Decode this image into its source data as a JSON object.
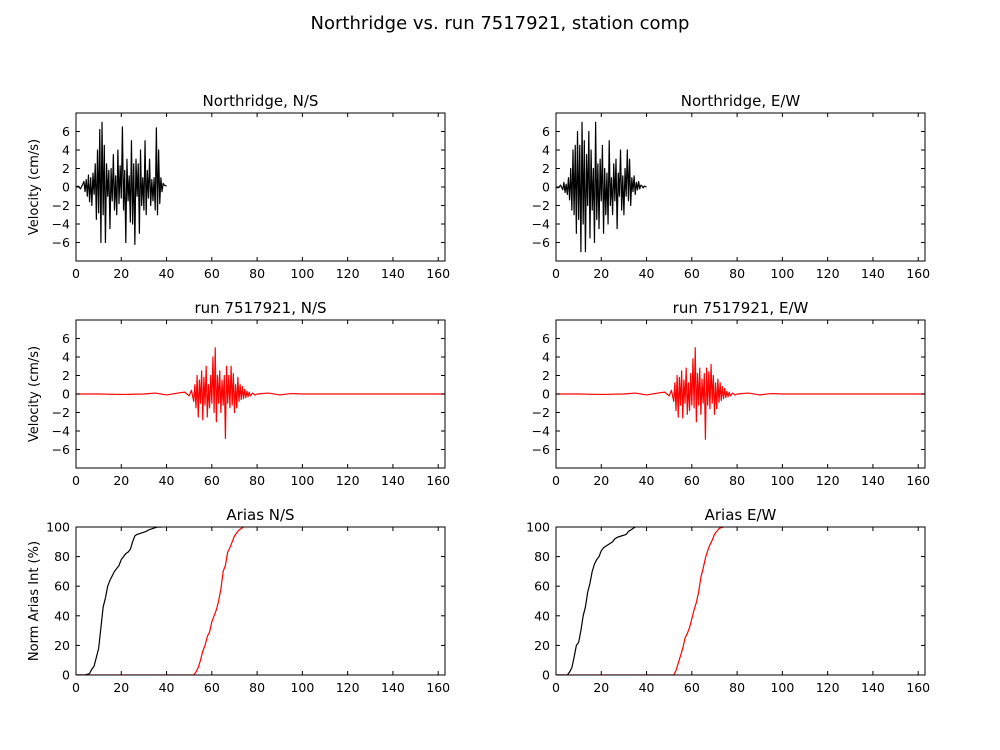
{
  "figure": {
    "title": "Northridge vs. run 7517921, station comp"
  },
  "colors": {
    "observed": "#000000",
    "simulated": "#ff0000"
  },
  "chart_data": [
    {
      "type": "line",
      "title": "Northridge, N/S",
      "xlabel": "",
      "ylabel": "Velocity (cm/s)",
      "xlim": [
        0,
        163
      ],
      "ylim": [
        -8,
        8
      ],
      "xticks": [
        0,
        20,
        40,
        60,
        80,
        100,
        120,
        140,
        160
      ],
      "yticks": [
        -6,
        -4,
        -2,
        0,
        2,
        4,
        6
      ],
      "series": [
        {
          "color": "#000000",
          "x": [
            0,
            1,
            2,
            3,
            3.5,
            4,
            4.5,
            5,
            5.5,
            6,
            6.5,
            7,
            7.5,
            8,
            8.5,
            9,
            9.5,
            10,
            10.5,
            11,
            11.5,
            12,
            12.5,
            13,
            13.5,
            14,
            14.5,
            15,
            15.5,
            16,
            16.5,
            17,
            17.5,
            18,
            18.5,
            19,
            19.5,
            20,
            20.5,
            21,
            21.5,
            22,
            22.5,
            23,
            23.5,
            24,
            24.5,
            25,
            25.5,
            26,
            26.5,
            27,
            27.5,
            28,
            28.5,
            29,
            29.5,
            30,
            30.5,
            31,
            31.5,
            32,
            32.5,
            33,
            33.5,
            34,
            34.5,
            35,
            35.5,
            36,
            36.5,
            37,
            37.5,
            38,
            38.5,
            39,
            40
          ],
          "y": [
            0,
            0.1,
            -0.2,
            0.3,
            0.6,
            -0.5,
            0.8,
            -1.0,
            1.3,
            -1.6,
            1.0,
            -2.0,
            1.5,
            -0.8,
            2.5,
            -3.5,
            4.0,
            -2.8,
            6.2,
            -6.0,
            7.0,
            -3.0,
            4.5,
            -6.0,
            2.5,
            -1.0,
            1.8,
            -4.5,
            2.0,
            -1.5,
            3.5,
            -2.5,
            1.2,
            -3.0,
            4.0,
            -1.8,
            2.3,
            -1.2,
            6.5,
            -2.5,
            1.8,
            -6.0,
            3.0,
            -1.5,
            1.2,
            -3.8,
            5.0,
            -4.0,
            2.5,
            -6.2,
            3.0,
            -1.0,
            2.5,
            -5.0,
            4.0,
            -2.0,
            1.0,
            -2.5,
            5.0,
            -3.0,
            1.8,
            -1.2,
            3.0,
            -2.0,
            0.8,
            -1.5,
            1.0,
            -2.5,
            6.4,
            -3.0,
            4.0,
            -1.8,
            1.0,
            -0.5,
            0.4,
            0.2,
            0.1
          ]
        }
      ]
    },
    {
      "type": "line",
      "title": "Northridge, E/W",
      "xlabel": "",
      "ylabel": "",
      "xlim": [
        0,
        163
      ],
      "ylim": [
        -8,
        8
      ],
      "xticks": [
        0,
        20,
        40,
        60,
        80,
        100,
        120,
        140,
        160
      ],
      "yticks": [
        -6,
        -4,
        -2,
        0,
        2,
        4,
        6
      ],
      "series": [
        {
          "color": "#000000",
          "x": [
            0,
            1,
            2,
            3,
            3.5,
            4,
            4.5,
            5,
            5.5,
            6,
            6.5,
            7,
            7.5,
            8,
            8.5,
            9,
            9.5,
            10,
            10.5,
            11,
            11.5,
            12,
            12.5,
            13,
            13.5,
            14,
            14.5,
            15,
            15.5,
            16,
            16.5,
            17,
            17.5,
            18,
            18.5,
            19,
            19.5,
            20,
            20.5,
            21,
            21.5,
            22,
            22.5,
            23,
            23.5,
            24,
            24.5,
            25,
            25.5,
            26,
            26.5,
            27,
            27.5,
            28,
            28.5,
            29,
            29.5,
            30,
            30.5,
            31,
            31.5,
            32,
            32.5,
            33,
            33.5,
            34,
            34.5,
            35,
            35.5,
            36,
            36.5,
            37,
            37.5,
            38,
            38.5,
            39,
            40
          ],
          "y": [
            0,
            -0.1,
            0.2,
            -0.3,
            0.5,
            -0.6,
            0.3,
            -0.8,
            1.0,
            -1.4,
            2.0,
            -2.5,
            4.0,
            -3.0,
            4.5,
            -5.0,
            6.0,
            -3.5,
            4.5,
            -7.0,
            7.0,
            -4.0,
            5.0,
            -7.0,
            3.5,
            -2.0,
            6.0,
            -5.5,
            4.0,
            -2.5,
            2.0,
            -6.0,
            7.0,
            -3.5,
            2.5,
            -4.5,
            3.0,
            -1.5,
            4.5,
            -5.0,
            2.0,
            -3.0,
            1.5,
            -4.0,
            5.0,
            -2.0,
            1.0,
            -3.0,
            2.5,
            -1.5,
            3.0,
            -4.5,
            1.5,
            -1.0,
            4.0,
            -2.5,
            1.2,
            -3.0,
            2.0,
            -1.0,
            4.0,
            -1.5,
            3.0,
            -2.0,
            1.0,
            -0.5,
            1.2,
            -0.8,
            0.5,
            -0.3,
            0.6,
            -0.2,
            0.2,
            0.1,
            -0.1,
            0.1,
            0
          ]
        }
      ]
    },
    {
      "type": "line",
      "title": "run 7517921, N/S",
      "xlabel": "",
      "ylabel": "Velocity (cm/s)",
      "xlim": [
        0,
        163
      ],
      "ylim": [
        -8,
        8
      ],
      "xticks": [
        0,
        20,
        40,
        60,
        80,
        100,
        120,
        140,
        160
      ],
      "yticks": [
        -6,
        -4,
        -2,
        0,
        2,
        4,
        6
      ],
      "series": [
        {
          "color": "#ff0000",
          "x": [
            0,
            10,
            20,
            30,
            35,
            40,
            45,
            48,
            50,
            51,
            52,
            52.5,
            53,
            53.5,
            54,
            54.5,
            55,
            55.5,
            56,
            56.5,
            57,
            57.5,
            58,
            58.5,
            59,
            59.5,
            60,
            60.5,
            61,
            61.5,
            62,
            62.5,
            63,
            63.5,
            64,
            64.5,
            65,
            65.5,
            66,
            66.5,
            67,
            67.5,
            68,
            68.5,
            69,
            69.5,
            70,
            70.5,
            71,
            71.5,
            72,
            72.5,
            73,
            73.5,
            74,
            74.5,
            75,
            75.5,
            76,
            76.5,
            77,
            78,
            79,
            80,
            85,
            90,
            95,
            100,
            110,
            120,
            130,
            140,
            150,
            163
          ],
          "y": [
            0,
            0,
            -0.05,
            0,
            0.1,
            -0.1,
            0.1,
            0.2,
            -0.2,
            0.4,
            -0.8,
            1.0,
            -1.5,
            2.0,
            -2.5,
            1.5,
            -1.0,
            2.5,
            -2.8,
            1.8,
            -1.2,
            3.0,
            -2.5,
            1.0,
            -1.5,
            2.0,
            -1.0,
            4.0,
            -2.0,
            5.0,
            -3.0,
            2.0,
            -1.0,
            2.5,
            -2.0,
            1.5,
            -1.2,
            2.0,
            -4.8,
            3.0,
            -1.0,
            2.0,
            -1.5,
            3.0,
            -1.2,
            2.2,
            -2.0,
            1.0,
            -1.5,
            1.8,
            -0.8,
            1.0,
            -0.6,
            0.8,
            -0.5,
            0.5,
            -0.4,
            0.3,
            -0.3,
            0.2,
            -0.2,
            0.1,
            -0.1,
            0,
            0.1,
            -0.1,
            0.05,
            0,
            0,
            0,
            0,
            0,
            0,
            0
          ]
        }
      ]
    },
    {
      "type": "line",
      "title": "run 7517921, E/W",
      "xlabel": "",
      "ylabel": "",
      "xlim": [
        0,
        163
      ],
      "ylim": [
        -8,
        8
      ],
      "xticks": [
        0,
        20,
        40,
        60,
        80,
        100,
        120,
        140,
        160
      ],
      "yticks": [
        -6,
        -4,
        -2,
        0,
        2,
        4,
        6
      ],
      "series": [
        {
          "color": "#ff0000",
          "x": [
            0,
            10,
            20,
            30,
            35,
            40,
            45,
            48,
            50,
            51,
            52,
            52.5,
            53,
            53.5,
            54,
            54.5,
            55,
            55.5,
            56,
            56.5,
            57,
            57.5,
            58,
            58.5,
            59,
            59.5,
            60,
            60.5,
            61,
            61.5,
            62,
            62.5,
            63,
            63.5,
            64,
            64.5,
            65,
            65.5,
            66,
            66.5,
            67,
            67.5,
            68,
            68.5,
            69,
            69.5,
            70,
            70.5,
            71,
            71.5,
            72,
            72.5,
            73,
            73.5,
            74,
            74.5,
            75,
            75.5,
            76,
            76.5,
            77,
            78,
            79,
            80,
            85,
            90,
            95,
            100,
            110,
            120,
            130,
            140,
            150,
            163
          ],
          "y": [
            0,
            0,
            -0.05,
            0,
            0.1,
            -0.1,
            0.1,
            0.2,
            -0.2,
            0.4,
            -0.8,
            1.2,
            -1.8,
            2.0,
            -2.5,
            1.8,
            -1.2,
            2.5,
            -2.6,
            1.5,
            -1.0,
            2.8,
            -2.2,
            1.2,
            -1.8,
            2.2,
            -1.2,
            3.8,
            -1.5,
            5.0,
            -3.0,
            2.2,
            -1.2,
            2.8,
            -2.2,
            1.6,
            -1.0,
            2.2,
            -4.9,
            2.8,
            -1.2,
            2.4,
            -1.6,
            3.2,
            -1.0,
            2.0,
            -2.2,
            1.2,
            -1.6,
            1.6,
            -0.9,
            1.2,
            -0.7,
            0.8,
            -0.5,
            0.6,
            -0.4,
            0.3,
            -0.3,
            0.2,
            -0.2,
            0.1,
            -0.1,
            0,
            0.1,
            -0.1,
            0.05,
            0,
            0,
            0,
            0,
            0,
            0,
            0
          ]
        }
      ]
    },
    {
      "type": "line",
      "title": "Arias N/S",
      "xlabel": "",
      "ylabel": "Norm Arias Int (%)",
      "xlim": [
        0,
        163
      ],
      "ylim": [
        0,
        100
      ],
      "xticks": [
        0,
        20,
        40,
        60,
        80,
        100,
        120,
        140,
        160
      ],
      "yticks": [
        0,
        20,
        40,
        60,
        80,
        100
      ],
      "series": [
        {
          "color": "#000000",
          "x": [
            0,
            4,
            6,
            7,
            8,
            9,
            10,
            11,
            12,
            13,
            14,
            15,
            16,
            17,
            18,
            19,
            20,
            21,
            22,
            23,
            24,
            25,
            26,
            27,
            28,
            29,
            30,
            31,
            32,
            33,
            34,
            35,
            36,
            37,
            38
          ],
          "y": [
            0,
            0,
            1,
            4,
            6,
            12,
            18,
            32,
            46,
            52,
            60,
            64,
            67,
            70,
            72,
            74,
            78,
            80,
            82,
            83,
            85,
            90,
            94,
            95,
            95.5,
            96,
            96.5,
            97,
            98,
            98.5,
            99,
            99.5,
            100,
            100,
            100
          ]
        },
        {
          "color": "#ff0000",
          "x": [
            0,
            40,
            50,
            52,
            53,
            54,
            55,
            56,
            57,
            58,
            59,
            60,
            61,
            62,
            63,
            64,
            65,
            66,
            67,
            68,
            69,
            70,
            71,
            72,
            73,
            74
          ],
          "y": [
            0,
            0,
            0,
            0,
            2,
            5,
            10,
            16,
            20,
            26,
            29,
            36,
            40,
            44,
            50,
            58,
            70,
            74,
            83,
            86,
            90,
            94,
            96,
            98,
            99,
            100
          ]
        }
      ]
    },
    {
      "type": "line",
      "title": "Arias E/W",
      "xlabel": "",
      "ylabel": "",
      "xlim": [
        0,
        163
      ],
      "ylim": [
        0,
        100
      ],
      "xticks": [
        0,
        20,
        40,
        60,
        80,
        100,
        120,
        140,
        160
      ],
      "yticks": [
        0,
        20,
        40,
        60,
        80,
        100
      ],
      "series": [
        {
          "color": "#000000",
          "x": [
            0,
            5,
            6,
            7,
            8,
            9,
            10,
            11,
            12,
            13,
            14,
            15,
            16,
            17,
            18,
            19,
            20,
            21,
            22,
            23,
            24,
            25,
            26,
            27,
            28,
            29,
            30,
            31,
            32,
            33,
            34,
            35
          ],
          "y": [
            0,
            0,
            2,
            5,
            12,
            20,
            22,
            30,
            40,
            46,
            56,
            62,
            70,
            75,
            78,
            80,
            84,
            86,
            87,
            88,
            89,
            90,
            92,
            93,
            93.5,
            94,
            94.5,
            95,
            97,
            98,
            99,
            100
          ]
        },
        {
          "color": "#ff0000",
          "x": [
            0,
            40,
            50,
            52,
            53,
            54,
            55,
            56,
            57,
            58,
            59,
            60,
            61,
            62,
            63,
            64,
            65,
            66,
            67,
            68,
            69,
            70,
            71,
            72,
            73,
            74
          ],
          "y": [
            0,
            0,
            0,
            0,
            3,
            8,
            13,
            18,
            25,
            28,
            32,
            38,
            44,
            49,
            56,
            66,
            72,
            79,
            84,
            88,
            91,
            95,
            97,
            99,
            99.5,
            100
          ]
        }
      ]
    }
  ]
}
